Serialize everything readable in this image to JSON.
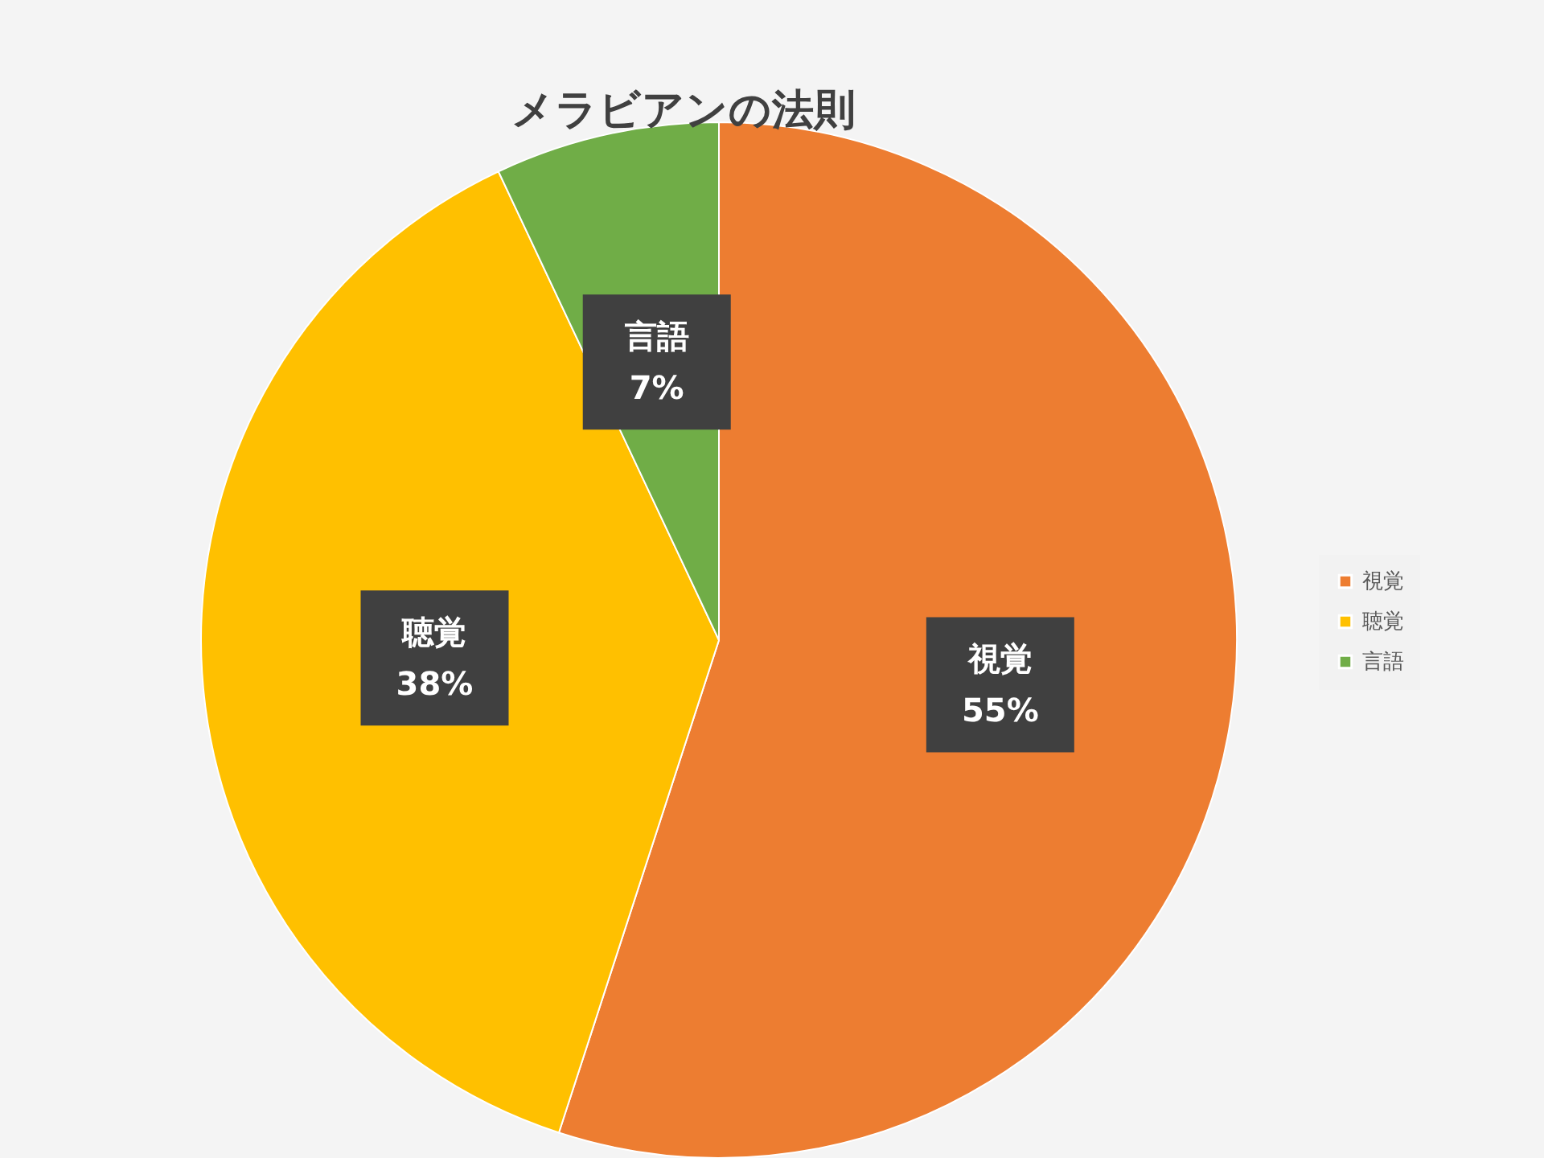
{
  "chart_data": {
    "type": "pie",
    "title": "メラビアンの法則",
    "categories": [
      "視覚",
      "聴覚",
      "言語"
    ],
    "values": [
      55,
      38,
      7
    ],
    "colors": [
      "#ed7d31",
      "#ffc000",
      "#70ad47"
    ],
    "value_labels": [
      "55%",
      "38%",
      "7%"
    ],
    "data_labels": true,
    "legend": "right"
  }
}
